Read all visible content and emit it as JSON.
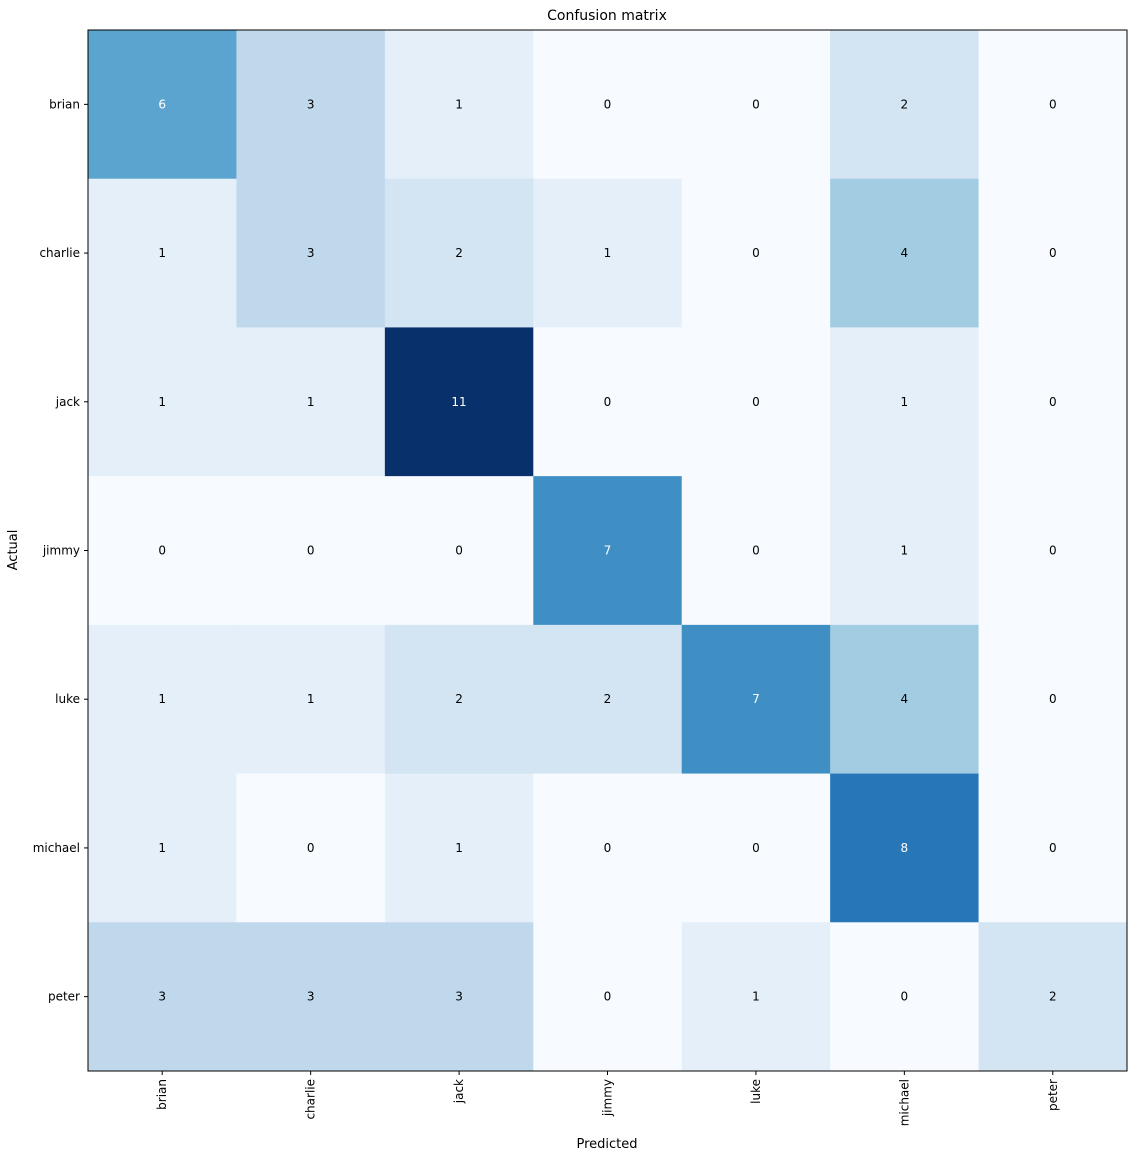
{
  "chart_data": {
    "type": "heatmap",
    "title": "Confusion matrix",
    "xlabel": "Predicted",
    "ylabel": "Actual",
    "x_categories": [
      "brian",
      "charlie",
      "jack",
      "jimmy",
      "luke",
      "michael",
      "peter"
    ],
    "y_categories": [
      "brian",
      "charlie",
      "jack",
      "jimmy",
      "luke",
      "michael",
      "peter"
    ],
    "values": [
      [
        6,
        3,
        1,
        0,
        0,
        2,
        0
      ],
      [
        1,
        3,
        2,
        1,
        0,
        4,
        0
      ],
      [
        1,
        1,
        11,
        0,
        0,
        1,
        0
      ],
      [
        0,
        0,
        0,
        7,
        0,
        1,
        0
      ],
      [
        1,
        1,
        2,
        2,
        7,
        4,
        0
      ],
      [
        1,
        0,
        1,
        0,
        0,
        8,
        0
      ],
      [
        3,
        3,
        3,
        0,
        1,
        0,
        2
      ]
    ],
    "value_range": [
      0,
      11
    ],
    "colormap": "Blues",
    "grid": false,
    "legend": "none"
  },
  "colors": {
    "text_dark": "#000000",
    "text_light": "#ffffff",
    "axis": "#000000"
  }
}
